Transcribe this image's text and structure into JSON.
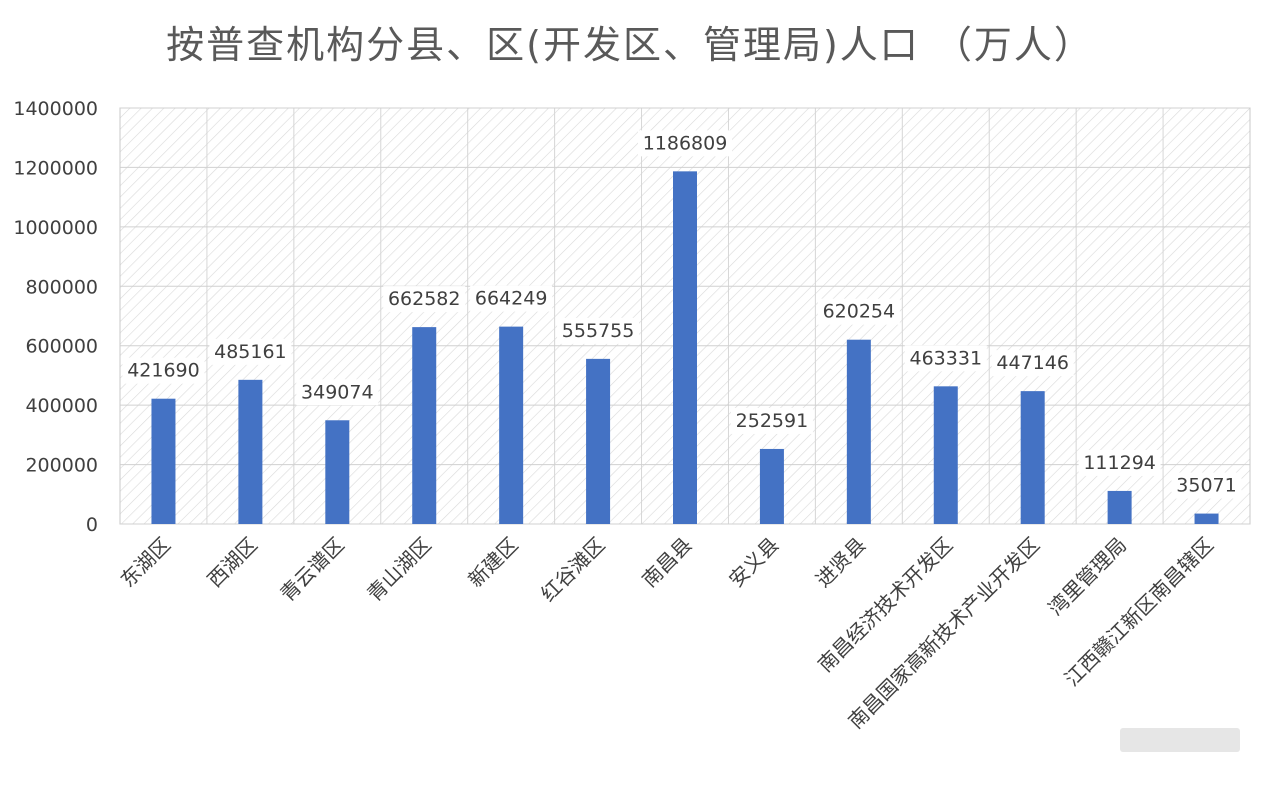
{
  "chart_data": {
    "type": "bar",
    "title": "按普查机构分县、区(开发区、管理局)人口 （万人）",
    "xlabel": "",
    "ylabel": "",
    "ylim": [
      0,
      1400000
    ],
    "yticks": [
      0,
      200000,
      400000,
      600000,
      800000,
      1000000,
      1200000,
      1400000
    ],
    "ytick_labels": [
      "0",
      "200000",
      "400000",
      "600000",
      "800000",
      "1000000",
      "1200000",
      "1400000"
    ],
    "grid": true,
    "legend": "none",
    "colors": {
      "bar": "#4472C4"
    },
    "categories": [
      "东湖区",
      "西湖区",
      "青云谱区",
      "青山湖区",
      "新建区",
      "红谷滩区",
      "南昌县",
      "安义县",
      "进贤县",
      "南昌经济技术开发区",
      "南昌国家高新技术产业开发区",
      "湾里管理局",
      "江西赣江新区南昌辖区"
    ],
    "values": [
      421690,
      485161,
      349074,
      662582,
      664249,
      555755,
      1186809,
      252591,
      620254,
      463331,
      447146,
      111294,
      35071
    ],
    "value_labels": [
      "421690",
      "485161",
      "349074",
      "662582",
      "664249",
      "555755",
      "1186809",
      "252591",
      "620254",
      "463331",
      "447146",
      "111294",
      "35071"
    ]
  }
}
